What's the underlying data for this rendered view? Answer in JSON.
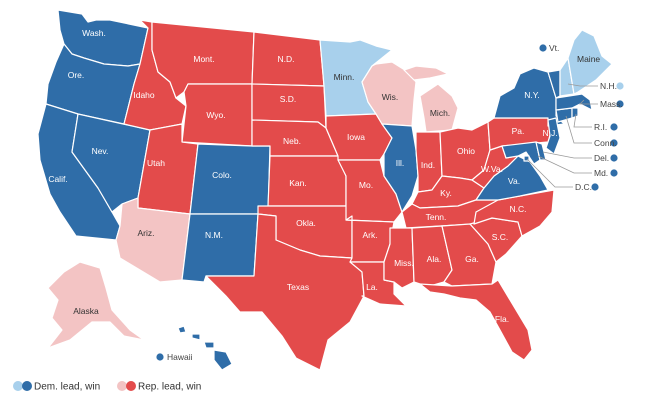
{
  "colors": {
    "dem_win": "#2f6da8",
    "dem_lead": "#a8d0ec",
    "rep_win": "#e34b4b",
    "rep_lead": "#f3c4c4"
  },
  "legend": [
    {
      "label": "Dem. lead, win",
      "lead_key": "dem_lead",
      "win_key": "dem_win"
    },
    {
      "label": "Rep. lead, win",
      "lead_key": "rep_lead",
      "win_key": "rep_win"
    }
  ],
  "states": {
    "WA": {
      "label": "Wash.",
      "status": "dem_win"
    },
    "OR": {
      "label": "Ore.",
      "status": "dem_win"
    },
    "CA": {
      "label": "Calif.",
      "status": "dem_win"
    },
    "NV": {
      "label": "Nev.",
      "status": "dem_win"
    },
    "ID": {
      "label": "Idaho",
      "status": "rep_win"
    },
    "MT": {
      "label": "Mont.",
      "status": "rep_win"
    },
    "WY": {
      "label": "Wyo.",
      "status": "rep_win"
    },
    "UT": {
      "label": "Utah",
      "status": "rep_win"
    },
    "AZ": {
      "label": "Ariz.",
      "status": "rep_lead"
    },
    "CO": {
      "label": "Colo.",
      "status": "dem_win"
    },
    "NM": {
      "label": "N.M.",
      "status": "dem_win"
    },
    "ND": {
      "label": "N.D.",
      "status": "rep_win"
    },
    "SD": {
      "label": "S.D.",
      "status": "rep_win"
    },
    "NE": {
      "label": "Neb.",
      "status": "rep_win"
    },
    "KS": {
      "label": "Kan.",
      "status": "rep_win"
    },
    "OK": {
      "label": "Okla.",
      "status": "rep_win"
    },
    "TX": {
      "label": "Texas",
      "status": "rep_win"
    },
    "MN": {
      "label": "Minn.",
      "status": "dem_lead"
    },
    "IA": {
      "label": "Iowa",
      "status": "rep_win"
    },
    "MO": {
      "label": "Mo.",
      "status": "rep_win"
    },
    "AR": {
      "label": "Ark.",
      "status": "rep_win"
    },
    "LA": {
      "label": "La.",
      "status": "rep_win"
    },
    "WI": {
      "label": "Wis.",
      "status": "rep_lead"
    },
    "IL": {
      "label": "Ill.",
      "status": "dem_win"
    },
    "MI": {
      "label": "Mich.",
      "status": "rep_lead"
    },
    "IN": {
      "label": "Ind.",
      "status": "rep_win"
    },
    "OH": {
      "label": "Ohio",
      "status": "rep_win"
    },
    "KY": {
      "label": "Ky.",
      "status": "rep_win"
    },
    "TN": {
      "label": "Tenn.",
      "status": "rep_win"
    },
    "MS": {
      "label": "Miss.",
      "status": "rep_win"
    },
    "AL": {
      "label": "Ala.",
      "status": "rep_win"
    },
    "GA": {
      "label": "Ga.",
      "status": "rep_win"
    },
    "FL": {
      "label": "Fla.",
      "status": "rep_win"
    },
    "SC": {
      "label": "S.C.",
      "status": "rep_win"
    },
    "NC": {
      "label": "N.C.",
      "status": "rep_win"
    },
    "VA": {
      "label": "Va.",
      "status": "dem_win"
    },
    "WV": {
      "label": "W.Va.",
      "status": "rep_win"
    },
    "PA": {
      "label": "Pa.",
      "status": "rep_win"
    },
    "NY": {
      "label": "N.Y.",
      "status": "dem_win"
    },
    "NJ": {
      "label": "N.J.",
      "status": "dem_win"
    },
    "MD": {
      "label": "Md.",
      "status": "dem_win"
    },
    "DE": {
      "label": "Del.",
      "status": "dem_win"
    },
    "DC": {
      "label": "D.C.",
      "status": "dem_win"
    },
    "CT": {
      "label": "Conn.",
      "status": "dem_win"
    },
    "RI": {
      "label": "R.I.",
      "status": "dem_win"
    },
    "MA": {
      "label": "Mass.",
      "status": "dem_win"
    },
    "VT": {
      "label": "Vt.",
      "status": "dem_win"
    },
    "NH": {
      "label": "N.H.",
      "status": "dem_lead"
    },
    "ME": {
      "label": "Maine",
      "status": "dem_lead"
    },
    "AK": {
      "label": "Alaska",
      "status": "rep_lead"
    },
    "HI": {
      "label": "Hawaii",
      "status": "dem_win"
    }
  }
}
